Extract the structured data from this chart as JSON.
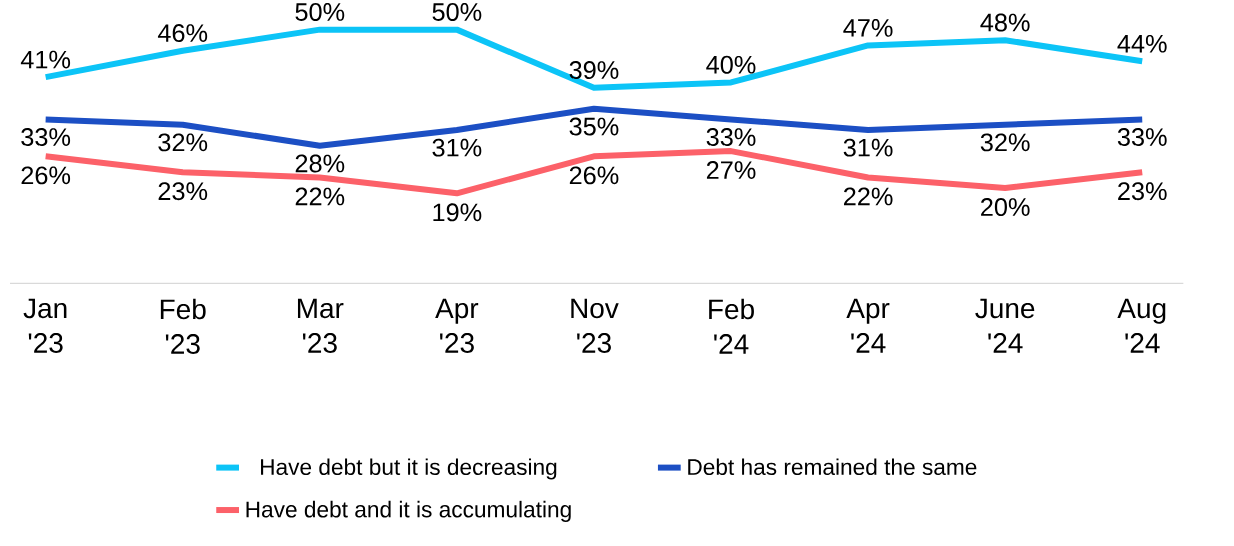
{
  "chart_data": {
    "type": "line",
    "categories": [
      "Jan '23",
      "Feb '23",
      "Mar '23",
      "Apr '23",
      "Nov '23",
      "Feb '24",
      "Apr '24",
      "June '24",
      "Aug '24"
    ],
    "series": [
      {
        "name": "Have debt but it is decreasing",
        "color": "#0cc4f7",
        "values": [
          41,
          46,
          50,
          50,
          39,
          40,
          47,
          48,
          44
        ],
        "value_labels": [
          "41%",
          "46%",
          "50%",
          "50%",
          "39%",
          "40%",
          "47%",
          "48%",
          "44%"
        ]
      },
      {
        "name": "Debt has remained the same",
        "color": "#1c4fc4",
        "values": [
          33,
          32,
          28,
          31,
          35,
          33,
          31,
          32,
          33
        ],
        "value_labels": [
          "33%",
          "32%",
          "28%",
          "31%",
          "35%",
          "33%",
          "31%",
          "32%",
          "33%"
        ]
      },
      {
        "name": "Have debt and it is accumulating",
        "color": "#fc6169",
        "values": [
          26,
          23,
          22,
          19,
          26,
          27,
          22,
          20,
          23
        ],
        "value_labels": [
          "26%",
          "23%",
          "22%",
          "19%",
          "26%",
          "27%",
          "22%",
          "20%",
          "23%"
        ]
      }
    ],
    "legend": "bottom",
    "grid": false,
    "marker": "none",
    "line_style": "solid"
  }
}
